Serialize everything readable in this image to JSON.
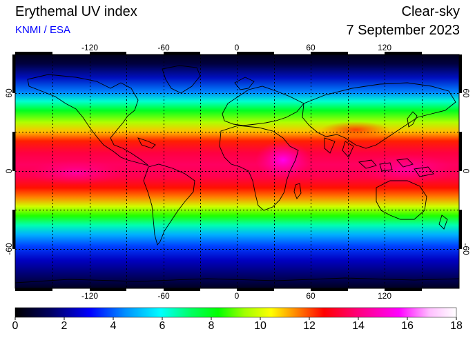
{
  "header": {
    "title": "Erythemal UV index",
    "source": "KNMI / ESA",
    "mode": "Clear-sky",
    "date": "7 September 2023"
  },
  "map": {
    "lon_ticks": [
      "-120",
      "-60",
      "0",
      "60",
      "120"
    ],
    "lat_ticks": [
      "60",
      "0",
      "-60"
    ],
    "grid": "dotted, 30 degree spacing",
    "palette": [
      "#000000",
      "#000060",
      "#0000ff",
      "#0090ff",
      "#00ffff",
      "#00ff60",
      "#00ff00",
      "#a0ff00",
      "#ffff00",
      "#ff8000",
      "#ff0000",
      "#ff0080",
      "#ff00ff",
      "#ffd0ff",
      "#ffffff"
    ]
  },
  "colorbar": {
    "min": 0,
    "max": 18,
    "ticks": [
      "0",
      "2",
      "4",
      "6",
      "8",
      "10",
      "12",
      "14",
      "16",
      "18"
    ]
  }
}
